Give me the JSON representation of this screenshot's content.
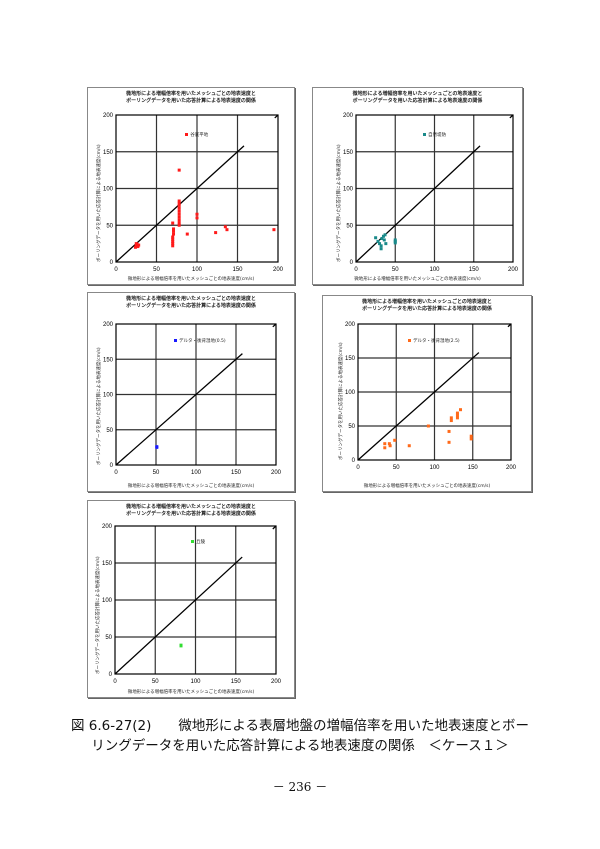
{
  "chart_data": [
    {
      "type": "scatter",
      "title_line1": "微地形による増幅倍率を用いたメッシュごとの地表速度と",
      "title_line2": "ボーリングデータを用いた応答計算による地表速度の関係",
      "xlabel": "微地形による増幅倍率を用いたメッシュごとの地表速度(cm/s)",
      "ylabel": "ボーリングデータを用いた応答計算による地表速度(cm/s)",
      "xlim": [
        0,
        200
      ],
      "ylim": [
        0,
        200
      ],
      "xticks": [
        "0",
        "50",
        "100",
        "150",
        "200"
      ],
      "yticks": [
        "0",
        "50",
        "100",
        "150",
        "200"
      ],
      "grid": true,
      "reference_line": "y = x",
      "legend": "谷底平地",
      "color": "#ff1a1a",
      "points": [
        [
          24,
          20
        ],
        [
          25,
          22
        ],
        [
          26,
          24
        ],
        [
          27,
          21
        ],
        [
          28,
          23
        ],
        [
          25,
          25
        ],
        [
          70,
          22
        ],
        [
          70,
          25
        ],
        [
          70,
          28
        ],
        [
          70,
          31
        ],
        [
          70,
          34
        ],
        [
          71,
          38
        ],
        [
          71,
          42
        ],
        [
          71,
          45
        ],
        [
          70,
          53
        ],
        [
          78,
          50
        ],
        [
          78,
          53
        ],
        [
          78,
          57
        ],
        [
          78,
          61
        ],
        [
          78,
          65
        ],
        [
          78,
          69
        ],
        [
          78,
          73
        ],
        [
          78,
          77
        ],
        [
          78,
          80
        ],
        [
          78,
          83
        ],
        [
          78,
          125
        ],
        [
          88,
          38
        ],
        [
          100,
          60
        ],
        [
          100,
          65
        ],
        [
          123,
          40
        ],
        [
          135,
          48
        ],
        [
          137,
          44
        ],
        [
          195,
          44
        ]
      ]
    },
    {
      "type": "scatter",
      "title_line1": "微地形による増幅倍率を用いたメッシュごとの地表速度と",
      "title_line2": "ボーリングデータを用いた応答計算による地表速度の関係",
      "xlabel": "微地形による増幅倍率を用いたメッシュごとの地表速度(cm/s)",
      "ylabel": "ボーリングデータを用いた応答計算による地表速度(cm/s)",
      "xlim": [
        0,
        200
      ],
      "ylim": [
        0,
        200
      ],
      "xticks": [
        "0",
        "50",
        "100",
        "150",
        "200"
      ],
      "yticks": [
        "0",
        "50",
        "100",
        "150",
        "200"
      ],
      "grid": true,
      "reference_line": "y = x",
      "legend": "自然堤防",
      "color": "#1a8a8a",
      "points": [
        [
          25,
          33
        ],
        [
          28,
          28
        ],
        [
          30,
          25
        ],
        [
          32,
          22
        ],
        [
          32,
          18
        ],
        [
          33,
          32
        ],
        [
          35,
          35
        ],
        [
          36,
          30
        ],
        [
          37,
          37
        ],
        [
          38,
          25
        ],
        [
          50,
          30
        ],
        [
          50,
          26
        ],
        [
          50,
          28
        ]
      ]
    },
    {
      "type": "scatter",
      "title_line1": "微地形による増幅倍率を用いたメッシュごとの地表速度と",
      "title_line2": "ボーリングデータを用いた応答計算による地表速度の関係",
      "xlabel": "微地形による増幅倍率を用いたメッシュごとの地表速度(cm/s)",
      "ylabel": "ボーリングデータを用いた応答計算による地表速度(cm/s)",
      "xlim": [
        0,
        200
      ],
      "ylim": [
        0,
        200
      ],
      "xticks": [
        "0",
        "50",
        "100",
        "150",
        "200"
      ],
      "yticks": [
        "0",
        "50",
        "100",
        "150",
        "200"
      ],
      "grid": true,
      "reference_line": "y = x",
      "legend": "デルタ・後背湿地(0.5)",
      "color": "#1a1aff",
      "points": [
        [
          51,
          25
        ],
        [
          51,
          26
        ]
      ]
    },
    {
      "type": "scatter",
      "title_line1": "微地形による増幅倍率を用いたメッシュごとの地表速度と",
      "title_line2": "ボーリングデータを用いた応答計算による地表速度の関係",
      "xlabel": "微地形による増幅倍率を用いたメッシュごとの地表速度(cm/s)",
      "ylabel": "ボーリングデータを用いた応答計算による地表速度(cm/s)",
      "xlim": [
        0,
        200
      ],
      "ylim": [
        0,
        200
      ],
      "xticks": [
        "0",
        "50",
        "100",
        "150",
        "200"
      ],
      "yticks": [
        "0",
        "50",
        "100",
        "150",
        "200"
      ],
      "grid": true,
      "reference_line": "y = x",
      "legend": "デルタ・後背湿地(2.5)",
      "color": "#ff6a1a",
      "points": [
        [
          35,
          24
        ],
        [
          35,
          18
        ],
        [
          41,
          24
        ],
        [
          42,
          21
        ],
        [
          48,
          29
        ],
        [
          67,
          21
        ],
        [
          92,
          50
        ],
        [
          119,
          42
        ],
        [
          119,
          26
        ],
        [
          122,
          62
        ],
        [
          122,
          58
        ],
        [
          130,
          69
        ],
        [
          130,
          66
        ],
        [
          130,
          62
        ],
        [
          134,
          74
        ],
        [
          148,
          35
        ],
        [
          148,
          31
        ]
      ]
    },
    {
      "type": "scatter",
      "title_line1": "微地形による増幅倍率を用いたメッシュごとの地表速度と",
      "title_line2": "ボーリングデータを用いた応答計算による地表速度の関係",
      "xlabel": "微地形による増幅倍率を用いたメッシュごとの地表速度(cm/s)",
      "ylabel": "ボーリングデータを用いた応答計算による地表速度(cm/s)",
      "xlim": [
        0,
        200
      ],
      "ylim": [
        0,
        200
      ],
      "xticks": [
        "0",
        "50",
        "100",
        "150",
        "200"
      ],
      "yticks": [
        "0",
        "50",
        "100",
        "150",
        "200"
      ],
      "grid": true,
      "reference_line": "y = x",
      "legend": "丘陵",
      "color": "#33dd33",
      "points": [
        [
          82,
          39
        ],
        [
          82,
          38
        ]
      ]
    }
  ],
  "caption": {
    "line1": "図 6.6-27(2)　　微地形による表層地盤の増幅倍率を用いた地表速度とボー",
    "line2": "リングデータを用いた応答計算による地表速度の関係　＜ケース１＞"
  },
  "page_number": "－ 236 －"
}
